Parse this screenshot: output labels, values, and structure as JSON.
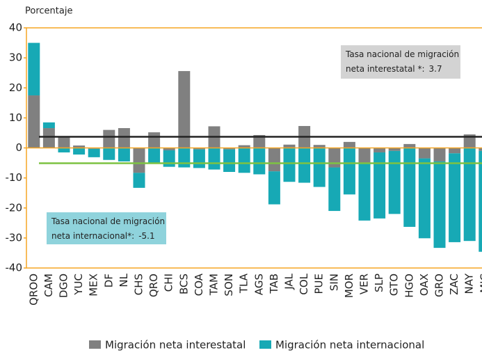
{
  "chart_data": {
    "type": "stacked_bar",
    "y_axis_label": "Porcentaje",
    "categories": [
      "QROO",
      "CAM",
      "DGO",
      "YUC",
      "MEX",
      "DF",
      "NL",
      "CHS",
      "QRO",
      "CHI",
      "BCS",
      "COA",
      "TAM",
      "SON",
      "TLA",
      "AGS",
      "TAB",
      "JAL",
      "COL",
      "PUE",
      "SIN",
      "MOR",
      "VER",
      "SLP",
      "GTO",
      "HGO",
      "OAX",
      "GRO",
      "ZAC",
      "NAY",
      "MIC"
    ],
    "series": [
      {
        "name": "Migración neta interestatal",
        "color": "#808080",
        "values": [
          17.5,
          6.6,
          3.8,
          0.8,
          -0.3,
          6,
          6.6,
          -8.3,
          5.2,
          -0.8,
          25.6,
          -0.5,
          7.2,
          -0.5,
          0.9,
          4.3,
          -7.8,
          1.1,
          7.3,
          1,
          -6.5,
          2,
          -5,
          -1.5,
          -1,
          1.3,
          -3.5,
          -4.5,
          -1.8,
          4.5,
          -1
        ]
      },
      {
        "name": "Migración neta internacional",
        "color": "#17a9b5",
        "values": [
          17.5,
          1.9,
          -1.5,
          -2.2,
          -2.8,
          -4,
          -4.5,
          -5,
          -5,
          -5.5,
          -6.5,
          -6.2,
          -7.2,
          -7.5,
          -8.3,
          -8.8,
          -11,
          -11.3,
          -11.6,
          -13,
          -14.5,
          -15.5,
          -19.2,
          -22,
          -21,
          -26.3,
          -26.6,
          -28.8,
          -29.6,
          -31,
          -33.6
        ]
      }
    ],
    "ylim": [
      -40,
      40
    ],
    "yticks": [
      -40,
      -30,
      -20,
      -10,
      0,
      10,
      20,
      30,
      40
    ],
    "reference_lines": [
      {
        "label_lines": [
          "Tasa nacional de migración",
          "neta interestatal *:"
        ],
        "value": 3.7,
        "color": "#222222",
        "box_color": "#d3d3d3"
      },
      {
        "label_lines": [
          "Tasa nacional de migración",
          "neta internacional*:"
        ],
        "value": -5.1,
        "color": "#7dc242",
        "box_color": "#8fd3dc"
      }
    ],
    "legend": "bottom"
  }
}
